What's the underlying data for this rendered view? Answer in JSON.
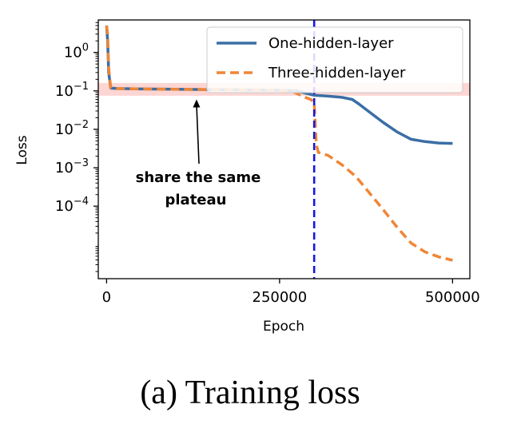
{
  "caption": "(a) Training loss",
  "chart_data": {
    "type": "line",
    "xlabel": "Epoch",
    "ylabel": "Loss",
    "xlim": [
      -12000,
      525000
    ],
    "ylim": [
      1.3e-06,
      7
    ],
    "yscale": "log",
    "x_ticks": [
      0,
      250000,
      500000
    ],
    "x_tick_labels": [
      "0",
      "250000",
      "500000"
    ],
    "y_ticks": [
      1,
      0.1,
      0.01,
      0.001,
      0.0001
    ],
    "y_tick_labels": [
      {
        "base": "10",
        "exp": "0"
      },
      {
        "base": "10",
        "exp": "−1"
      },
      {
        "base": "10",
        "exp": "−2"
      },
      {
        "base": "10",
        "exp": "−3"
      },
      {
        "base": "10",
        "exp": "−4"
      }
    ],
    "grid": false,
    "legend_position": "top-right",
    "series": [
      {
        "name": "One-hidden-layer",
        "color": "#3a6ea5",
        "style": "solid",
        "x": [
          0,
          1500,
          3000,
          6000,
          15000,
          50000,
          100000,
          150000,
          200000,
          250000,
          275000,
          290000,
          300000,
          320000,
          340000,
          355000,
          365000,
          380000,
          400000,
          420000,
          440000,
          460000,
          480000,
          500000
        ],
        "y": [
          5,
          2,
          0.3,
          0.118,
          0.115,
          0.112,
          0.11,
          0.108,
          0.106,
          0.104,
          0.1,
          0.085,
          0.077,
          0.073,
          0.068,
          0.06,
          0.045,
          0.028,
          0.015,
          0.0085,
          0.0055,
          0.0048,
          0.0044,
          0.0043
        ]
      },
      {
        "name": "Three-hidden-layer",
        "color": "#ef8636",
        "style": "dashed",
        "x": [
          0,
          1500,
          3000,
          6000,
          15000,
          50000,
          100000,
          150000,
          200000,
          250000,
          270000,
          285000,
          295000,
          300000,
          303000,
          306000,
          320000,
          340000,
          360000,
          380000,
          400000,
          420000,
          440000,
          460000,
          480000,
          500000
        ],
        "y": [
          5,
          3,
          0.4,
          0.12,
          0.115,
          0.112,
          0.11,
          0.108,
          0.106,
          0.104,
          0.095,
          0.07,
          0.06,
          0.05,
          0.004,
          0.0025,
          0.0021,
          0.0012,
          0.0006,
          0.00022,
          8e-05,
          2.8e-05,
          1.1e-05,
          6.5e-06,
          4.8e-06,
          3.9e-06
        ]
      }
    ],
    "vline": {
      "x": 300000,
      "color": "#1515e0",
      "style": "dashed"
    },
    "band": {
      "y_low": 0.075,
      "y_high": 0.16,
      "color": "#fdd5d2"
    },
    "annotation": {
      "lines": [
        "share the same",
        "plateau"
      ],
      "arrow_target": [
        130000,
        0.06
      ]
    }
  }
}
